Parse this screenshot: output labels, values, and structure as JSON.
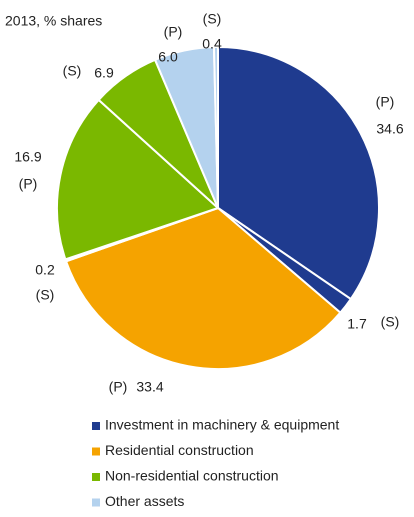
{
  "chart_data": {
    "type": "pie",
    "subtitle": "2013, % shares",
    "series": [
      {
        "name": "Investment in machinery & equipment",
        "color": "#1f3b8f",
        "values": [
          34.6,
          1.7
        ],
        "tags": [
          "(P)",
          "(S)"
        ]
      },
      {
        "name": "Residential construction",
        "color": "#f5a300",
        "values": [
          33.4,
          0.2
        ],
        "tags": [
          "(P)",
          "(S)"
        ]
      },
      {
        "name": "Non-residential construction",
        "color": "#7ab800",
        "values": [
          16.9,
          6.9
        ],
        "tags": [
          "(P)",
          "(S)"
        ]
      },
      {
        "name": "Other assets",
        "color": "#b4d2ee",
        "values": [
          6.0,
          0.4
        ],
        "value_labels": [
          "6.0",
          "0.4"
        ],
        "tags": [
          "(P)",
          "(S)"
        ]
      }
    ]
  }
}
